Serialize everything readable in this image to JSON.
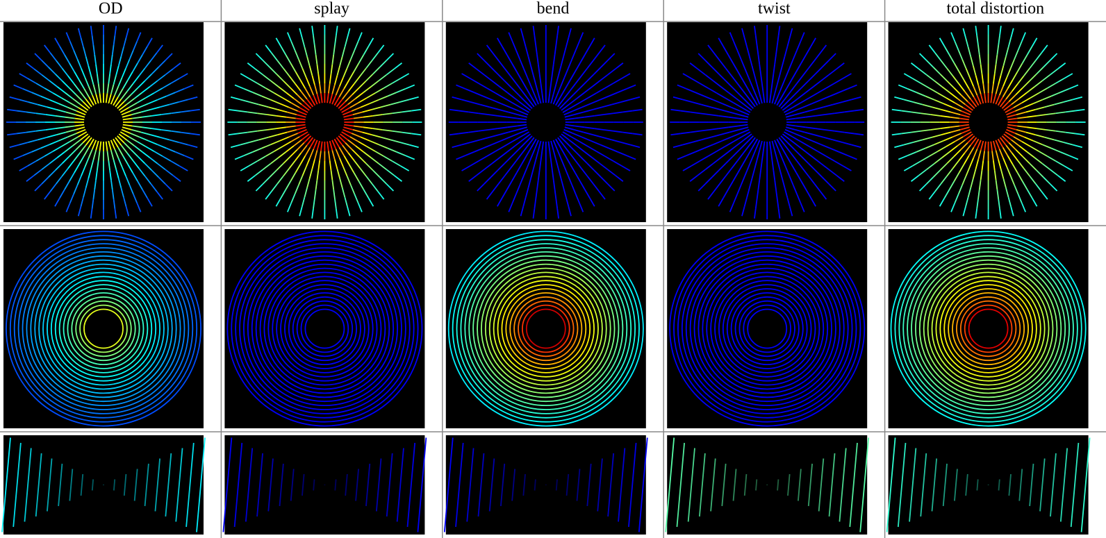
{
  "header": {
    "columns": [
      "OD",
      "splay",
      "bend",
      "twist",
      "total distortion"
    ]
  }
}
